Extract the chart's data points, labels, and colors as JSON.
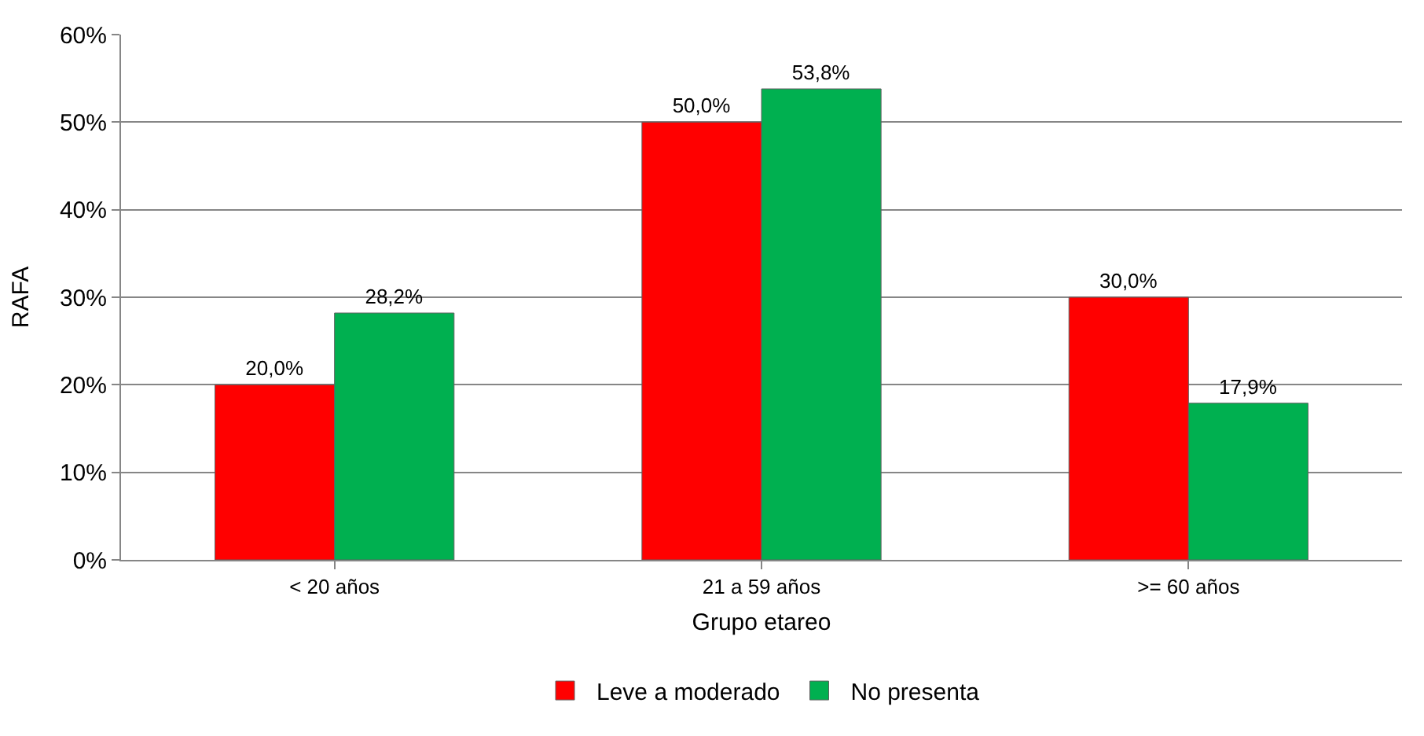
{
  "chart_data": {
    "type": "bar",
    "xlabel": "Grupo etareo",
    "ylabel": "RAFA",
    "categories": [
      "< 20 años",
      "21 a 59 años",
      ">= 60 años"
    ],
    "series": [
      {
        "name": "Leve a moderado",
        "color": "#ff0000",
        "values": [
          20.0,
          50.0,
          30.0
        ],
        "value_labels": [
          "20,0%",
          "50,0%",
          "30,0%"
        ]
      },
      {
        "name": "No presenta",
        "color": "#00b050",
        "values": [
          28.2,
          53.8,
          17.9
        ],
        "value_labels": [
          "28,2%",
          "53,8%",
          "17,9%"
        ]
      }
    ],
    "ylim": [
      0,
      60
    ],
    "yticks": [
      {
        "value": 0,
        "label": "0%"
      },
      {
        "value": 10,
        "label": "10%"
      },
      {
        "value": 20,
        "label": "20%"
      },
      {
        "value": 30,
        "label": "30%"
      },
      {
        "value": 40,
        "label": "40%"
      },
      {
        "value": 50,
        "label": "50%"
      },
      {
        "value": 60,
        "label": "60%"
      }
    ],
    "grid": "y",
    "legend": "bottom"
  }
}
